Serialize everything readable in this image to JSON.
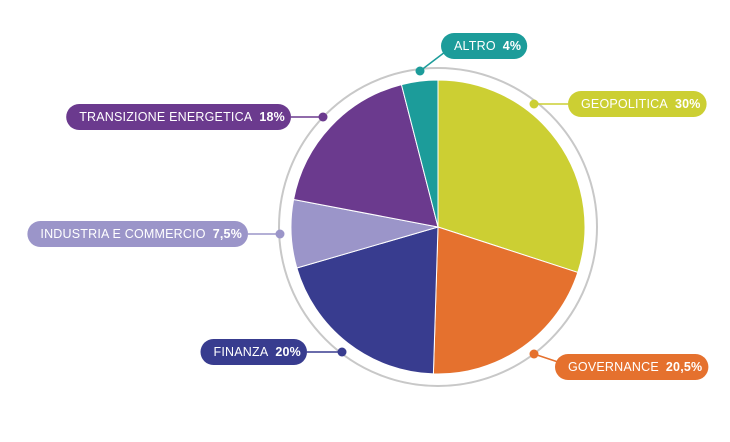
{
  "chart_data": {
    "type": "pie",
    "title": "",
    "slices": [
      {
        "label": "GEOPOLITICA",
        "value": 30,
        "value_text": "30%",
        "color": "#CCCF33"
      },
      {
        "label": "GOVERNANCE",
        "value": 20.5,
        "value_text": "20,5%",
        "color": "#E5712E"
      },
      {
        "label": "FINANZA",
        "value": 20,
        "value_text": "20%",
        "color": "#383C8F"
      },
      {
        "label": "INDUSTRIA E COMMERCIO",
        "value": 7.5,
        "value_text": "7,5%",
        "color": "#9B95C9"
      },
      {
        "label": "TRANSIZIONE ENERGETICA",
        "value": 18,
        "value_text": "18%",
        "color": "#6B3A8E"
      },
      {
        "label": "ALTRO",
        "value": 4,
        "value_text": "4%",
        "color": "#1C9C9A"
      }
    ],
    "start_angle": "top",
    "direction": "clockwise",
    "outer_ring": true,
    "legend": "callout-labels"
  }
}
